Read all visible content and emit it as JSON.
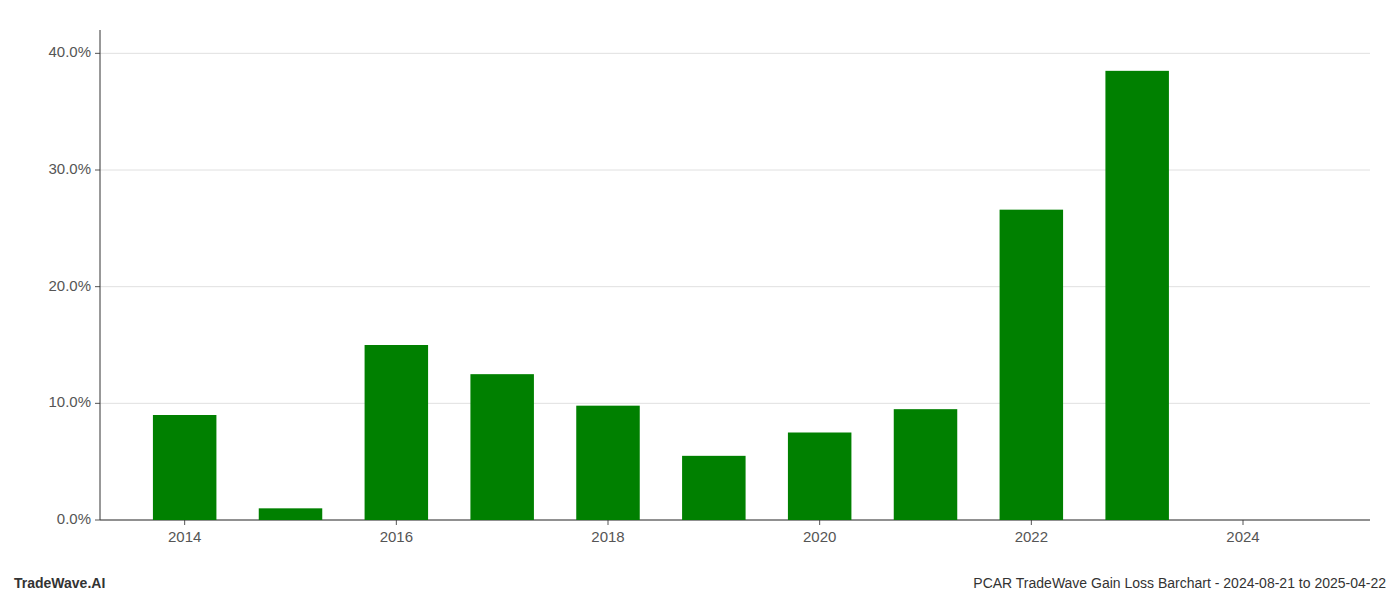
{
  "chart_data": {
    "type": "bar",
    "x": [
      2014,
      2015,
      2016,
      2017,
      2018,
      2019,
      2020,
      2021,
      2022,
      2023,
      2024
    ],
    "values": [
      0.09,
      0.01,
      0.15,
      0.125,
      0.098,
      0.055,
      0.075,
      0.095,
      0.266,
      0.385,
      0.0
    ],
    "color": "#008000",
    "xlim": [
      2013.2,
      2025.2
    ],
    "xticks": [
      2014,
      2016,
      2018,
      2020,
      2022,
      2024
    ],
    "ylim": [
      0,
      0.42
    ],
    "yticks": [
      {
        "value": 0.0,
        "label": "0.0%"
      },
      {
        "value": 0.1,
        "label": "10.0%"
      },
      {
        "value": 0.2,
        "label": "20.0%"
      },
      {
        "value": 0.3,
        "label": "30.0%"
      },
      {
        "value": 0.4,
        "label": "40.0%"
      }
    ],
    "grid": true,
    "annotations": [
      "TradeWave.AI",
      "PCAR TradeWave Gain Loss Barchart - 2024-08-21 to 2025-04-22"
    ]
  }
}
